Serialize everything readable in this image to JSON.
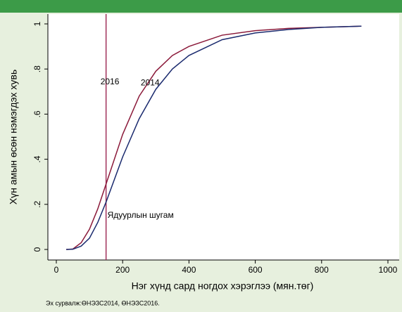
{
  "chart_data": {
    "type": "line",
    "xlabel": "Нэг хүнд сард ногдох хэрэглээ (мян.төг)",
    "ylabel": "Хүн амын өсөн нэмэгдэх хувь",
    "source": "Эх сурвалж:ӨНЭЗС2014, ӨНЭЗС2016.",
    "x": [
      30,
      50,
      75,
      100,
      125,
      150,
      175,
      200,
      250,
      300,
      350,
      400,
      500,
      600,
      700,
      800,
      920
    ],
    "series": [
      {
        "name": "2016",
        "color": "#8b1a3a",
        "values": [
          0,
          0.002,
          0.03,
          0.09,
          0.18,
          0.29,
          0.4,
          0.51,
          0.68,
          0.79,
          0.86,
          0.9,
          0.95,
          0.97,
          0.98,
          0.985,
          0.99
        ]
      },
      {
        "name": "2014",
        "color": "#1a2a6e",
        "values": [
          0,
          0.001,
          0.015,
          0.05,
          0.12,
          0.21,
          0.31,
          0.41,
          0.58,
          0.71,
          0.8,
          0.86,
          0.93,
          0.96,
          0.975,
          0.985,
          0.99
        ]
      }
    ],
    "poverty_line": {
      "label": "Ядуурлын шугам",
      "x": 150,
      "color": "#a0305a"
    },
    "xlim": [
      0,
      1000
    ],
    "xticks": [
      0,
      200,
      400,
      600,
      800,
      1000
    ],
    "ylim": [
      0,
      1
    ],
    "yticks": [
      0,
      {
        "value": 0.2,
        "label": ".2"
      },
      {
        "value": 0.4,
        "label": ".4"
      },
      {
        "value": 0.6,
        "label": ".6"
      },
      {
        "value": 0.8,
        "label": ".8"
      },
      1
    ],
    "grid": false
  }
}
